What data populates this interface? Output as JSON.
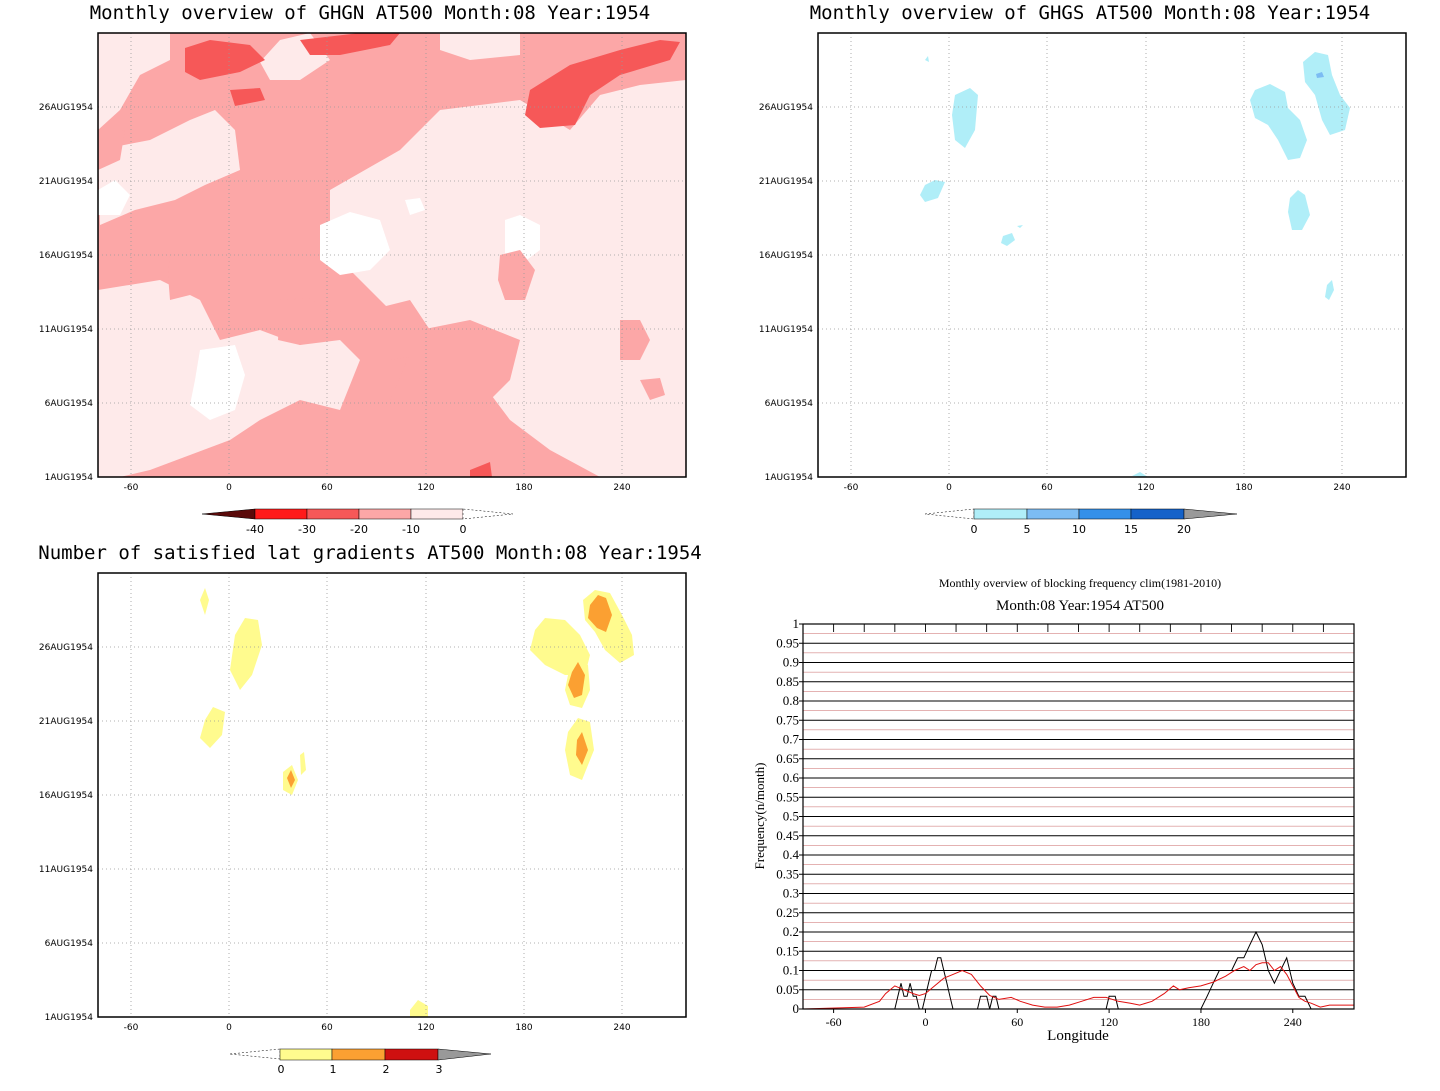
{
  "colors": {
    "red_scale": [
      "#5a0a0a",
      "#ff1a1a",
      "#f65858",
      "#fca7a7",
      "#feeaea",
      "#ffffff"
    ],
    "blue_scale": [
      "#ffffff",
      "#b0eef8",
      "#7cbcf3",
      "#3490e9",
      "#1562c9",
      "#999999"
    ],
    "yellow_scale": [
      "#ffffff",
      "#fffb8e",
      "#fba032",
      "#cf1010",
      "#999999"
    ],
    "line_black": "#000000",
    "line_red": "#e01010"
  },
  "panels": [
    {
      "id": "ghgn",
      "title": "Monthly overview of GHGN AT500 Month:08 Year:1954",
      "x_ticks": [
        "-60",
        "0",
        "60",
        "120",
        "180",
        "240"
      ],
      "y_ticks": [
        "26AUG1954",
        "21AUG1954",
        "16AUG1954",
        "11AUG1954",
        "6AUG1954",
        "1AUG1954"
      ],
      "colorbar": {
        "labels": [
          "-40",
          "-30",
          "-20",
          "-10",
          "0"
        ]
      }
    },
    {
      "id": "ghgs",
      "title": "Monthly overview of GHGS AT500 Month:08 Year:1954",
      "x_ticks": [
        "-60",
        "0",
        "60",
        "120",
        "180",
        "240"
      ],
      "y_ticks": [
        "26AUG1954",
        "21AUG1954",
        "16AUG1954",
        "11AUG1954",
        "6AUG1954",
        "1AUG1954"
      ],
      "colorbar": {
        "labels": [
          "0",
          "5",
          "10",
          "15",
          "20"
        ]
      }
    },
    {
      "id": "latgrad",
      "title": "Number of satisfied lat gradients AT500 Month:08 Year:1954",
      "x_ticks": [
        "-60",
        "0",
        "60",
        "120",
        "180",
        "240"
      ],
      "y_ticks": [
        "26AUG1954",
        "21AUG1954",
        "16AUG1954",
        "11AUG1954",
        "6AUG1954",
        "1AUG1954"
      ],
      "colorbar": {
        "labels": [
          "0",
          "1",
          "2",
          "3"
        ]
      }
    }
  ],
  "frequency": {
    "title": "Monthly overview of blocking frequency clim(1981-2010)",
    "subtitle": "Month:08 Year:1954  AT500",
    "xlabel": "Longitude",
    "ylabel": "Frequency(n/month)",
    "x_ticks": [
      "-60",
      "0",
      "60",
      "120",
      "180",
      "240"
    ],
    "y_ticks": [
      "0",
      "0.05",
      "0.1",
      "0.15",
      "0.2",
      "0.25",
      "0.3",
      "0.35",
      "0.4",
      "0.45",
      "0.5",
      "0.55",
      "0.6",
      "0.65",
      "0.7",
      "0.75",
      "0.8",
      "0.85",
      "0.9",
      "0.95",
      "1"
    ]
  },
  "chart_data": [
    {
      "type": "heatmap",
      "title": "Monthly overview of GHGN AT500 Month:08 Year:1954",
      "x_range": [
        -80,
        280
      ],
      "y_range": [
        "1AUG1954",
        "31AUG1954"
      ],
      "levels": [
        -40,
        -30,
        -20,
        -10,
        0
      ],
      "grid": true
    },
    {
      "type": "heatmap",
      "title": "Monthly overview of GHGS AT500 Month:08 Year:1954",
      "x_range": [
        -80,
        280
      ],
      "y_range": [
        "1AUG1954",
        "31AUG1954"
      ],
      "levels": [
        0,
        5,
        10,
        15,
        20
      ],
      "grid": true
    },
    {
      "type": "heatmap",
      "title": "Number of satisfied lat gradients AT500 Month:08 Year:1954",
      "x_range": [
        -80,
        280
      ],
      "y_range": [
        "1AUG1954",
        "31AUG1954"
      ],
      "levels": [
        0,
        1,
        2,
        3
      ],
      "grid": true
    },
    {
      "type": "line",
      "title": "Monthly overview of blocking frequency clim(1981-2010)",
      "xlabel": "Longitude",
      "ylabel": "Frequency(n/month)",
      "xlim": [
        -80,
        280
      ],
      "ylim": [
        0,
        1
      ],
      "grid": true,
      "series": [
        {
          "color": "#000000",
          "x": [
            -80,
            -20,
            -16,
            -14,
            -12,
            -10,
            -8,
            -6,
            -4,
            -2,
            0,
            2,
            4,
            6,
            8,
            10,
            12,
            14,
            16,
            18,
            20,
            34,
            36,
            38,
            40,
            42,
            44,
            46,
            48,
            50,
            118,
            120,
            122,
            124,
            126,
            180,
            184,
            188,
            192,
            196,
            200,
            204,
            208,
            212,
            216,
            220,
            224,
            228,
            232,
            236,
            240,
            244,
            248,
            252,
            256,
            280
          ],
          "y": [
            0,
            0,
            0.067,
            0.033,
            0.033,
            0.067,
            0.033,
            0.033,
            0,
            0,
            0.033,
            0.067,
            0.1,
            0.1,
            0.133,
            0.133,
            0.1,
            0.067,
            0.033,
            0,
            0,
            0,
            0.033,
            0.033,
            0.033,
            0,
            0.033,
            0.033,
            0,
            0,
            0,
            0.033,
            0.033,
            0.033,
            0,
            0,
            0.033,
            0.067,
            0.1,
            0.1,
            0.1,
            0.133,
            0.133,
            0.167,
            0.2,
            0.167,
            0.1,
            0.067,
            0.1,
            0.133,
            0.067,
            0.033,
            0.033,
            0,
            0,
            0
          ]
        },
        {
          "color": "#e01010",
          "x": [
            -80,
            -40,
            -30,
            -26,
            -20,
            -14,
            -8,
            -4,
            0,
            6,
            12,
            18,
            24,
            30,
            36,
            42,
            48,
            56,
            62,
            70,
            78,
            86,
            94,
            102,
            110,
            118,
            126,
            134,
            140,
            148,
            156,
            162,
            166,
            172,
            180,
            188,
            196,
            202,
            208,
            212,
            216,
            220,
            224,
            228,
            232,
            236,
            240,
            244,
            248,
            252,
            258,
            264,
            270,
            280
          ],
          "y": [
            0,
            0.005,
            0.02,
            0.04,
            0.06,
            0.05,
            0.04,
            0.035,
            0.04,
            0.06,
            0.08,
            0.09,
            0.1,
            0.09,
            0.06,
            0.035,
            0.025,
            0.03,
            0.02,
            0.01,
            0.005,
            0.005,
            0.01,
            0.02,
            0.03,
            0.03,
            0.02,
            0.015,
            0.01,
            0.02,
            0.04,
            0.06,
            0.05,
            0.055,
            0.06,
            0.07,
            0.085,
            0.1,
            0.11,
            0.1,
            0.115,
            0.12,
            0.12,
            0.1,
            0.11,
            0.09,
            0.06,
            0.03,
            0.02,
            0.015,
            0.005,
            0.01,
            0.01,
            0.01
          ]
        }
      ]
    }
  ]
}
